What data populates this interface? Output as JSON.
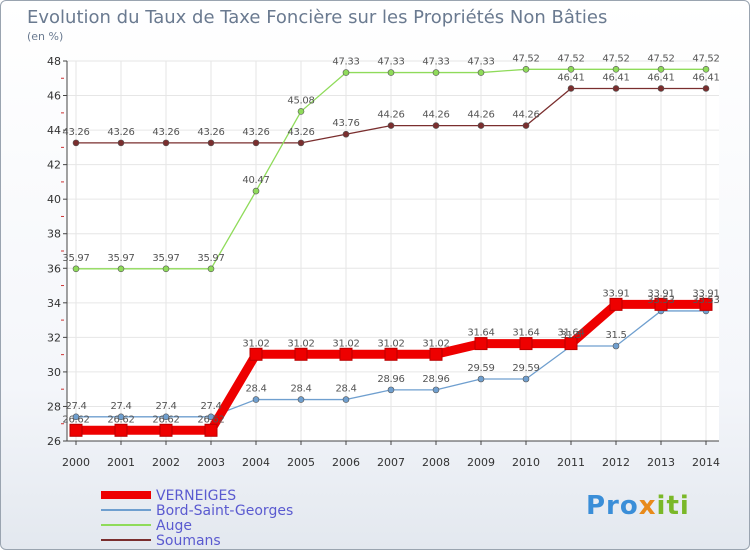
{
  "logo_text": "Proxiti",
  "chart_data": {
    "type": "line",
    "title": "Evolution du Taux de Taxe Foncière sur les Propriétés Non Bâties",
    "ylabel": "(en %)",
    "xlabel": "",
    "ylim": [
      26,
      48
    ],
    "yticks": [
      26,
      28,
      30,
      32,
      34,
      36,
      38,
      40,
      42,
      44,
      46,
      48
    ],
    "grid": true,
    "categories": [
      "2000",
      "2001",
      "2002",
      "2003",
      "2004",
      "2005",
      "2006",
      "2007",
      "2008",
      "2009",
      "2010",
      "2011",
      "2012",
      "2013",
      "2014"
    ],
    "series": [
      {
        "name": "VERNEIGES",
        "color": "#ee0000",
        "values": [
          26.62,
          26.62,
          26.62,
          26.62,
          31.02,
          31.02,
          31.02,
          31.02,
          31.02,
          31.64,
          31.64,
          31.64,
          33.91,
          33.91,
          33.91
        ]
      },
      {
        "name": "Bord-Saint-Georges",
        "color": "#6f9fcf",
        "values": [
          27.4,
          27.4,
          27.4,
          27.4,
          28.4,
          28.4,
          28.4,
          28.96,
          28.96,
          29.59,
          29.59,
          31.5,
          31.5,
          33.53,
          33.53
        ]
      },
      {
        "name": "Auge",
        "color": "#8fdb5a",
        "values": [
          35.97,
          35.97,
          35.97,
          35.97,
          40.47,
          45.08,
          47.33,
          47.33,
          47.33,
          47.33,
          47.52,
          47.52,
          47.52,
          47.52,
          47.52
        ]
      },
      {
        "name": "Soumans",
        "color": "#7a2e2e",
        "values": [
          43.26,
          43.26,
          43.26,
          43.26,
          43.26,
          43.26,
          43.76,
          44.26,
          44.26,
          44.26,
          44.26,
          46.41,
          46.41,
          46.41,
          46.41
        ]
      }
    ]
  }
}
